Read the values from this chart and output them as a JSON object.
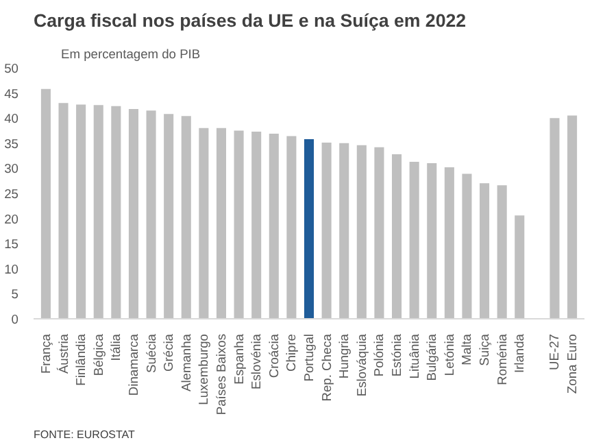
{
  "chart_data": {
    "type": "bar",
    "title": "Carga fiscal nos países da UE e na Suíça em 2022",
    "subtitle": "Em percentagem do PIB",
    "categories": [
      "França",
      "Áustria",
      "Finlândia",
      "Bélgica",
      "Itália",
      "Dinamarca",
      "Suécia",
      "Grécia",
      "Alemanha",
      "Luxemburgo",
      "Países Baixos",
      "Espanha",
      "Eslovénia",
      "Croácia",
      "Chipre",
      "Portugal",
      "Rep. Checa",
      "Hungria",
      "Eslováquia",
      "Polónia",
      "Estónia",
      "Lituânia",
      "Bulgária",
      "Letónia",
      "Malta",
      "Suiça",
      "Roménia",
      "Irlanda",
      null,
      "UE-27",
      "Zona Euro"
    ],
    "values": [
      45.8,
      43.0,
      42.7,
      42.6,
      42.4,
      41.8,
      41.5,
      40.8,
      40.4,
      38.0,
      38.0,
      37.5,
      37.3,
      36.9,
      36.4,
      35.8,
      35.1,
      35.0,
      34.6,
      34.2,
      32.8,
      31.3,
      31.0,
      30.2,
      28.9,
      27.0,
      26.6,
      20.6,
      null,
      40.0,
      40.5
    ],
    "colors": [
      "#bfbfbf",
      "#bfbfbf",
      "#bfbfbf",
      "#bfbfbf",
      "#bfbfbf",
      "#bfbfbf",
      "#bfbfbf",
      "#bfbfbf",
      "#bfbfbf",
      "#bfbfbf",
      "#bfbfbf",
      "#bfbfbf",
      "#bfbfbf",
      "#bfbfbf",
      "#bfbfbf",
      "#1f5c99",
      "#bfbfbf",
      "#bfbfbf",
      "#bfbfbf",
      "#bfbfbf",
      "#bfbfbf",
      "#bfbfbf",
      "#bfbfbf",
      "#bfbfbf",
      "#bfbfbf",
      "#bfbfbf",
      "#bfbfbf",
      "#bfbfbf",
      "#bfbfbf",
      "#bfbfbf",
      "#bfbfbf"
    ],
    "ylim": [
      0,
      50
    ],
    "yticks": [
      0,
      5,
      10,
      15,
      20,
      25,
      30,
      35,
      40,
      45,
      50
    ],
    "grid": false,
    "annotations": [
      "FONTE: EUROSTAT"
    ]
  }
}
